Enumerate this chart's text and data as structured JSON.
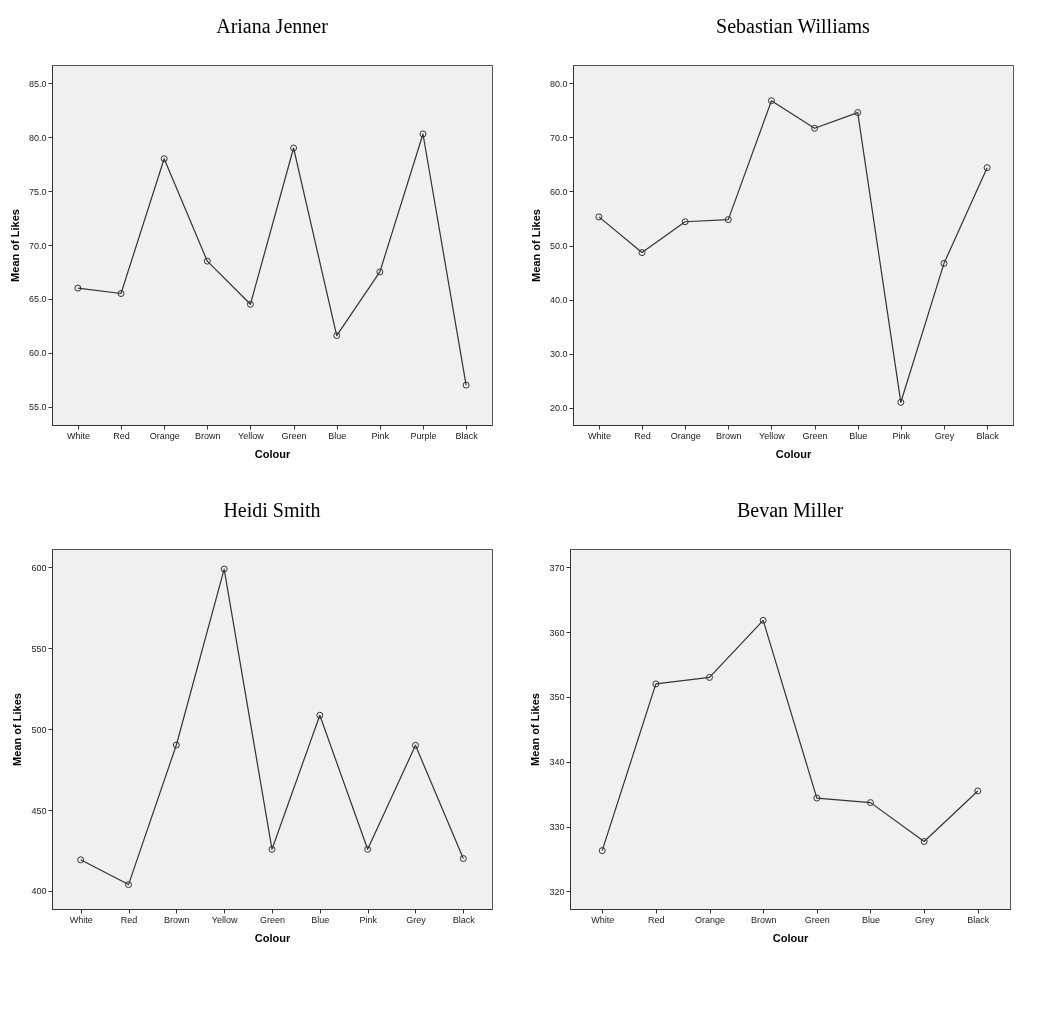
{
  "chart_data": [
    {
      "type": "line",
      "title": "Ariana Jenner",
      "xlabel": "Colour",
      "ylabel": "Mean of Likes",
      "categories": [
        "White",
        "Red",
        "Orange",
        "Brown",
        "Yellow",
        "Green",
        "Blue",
        "Pink",
        "Purple",
        "Black"
      ],
      "series": [
        {
          "color": "#333333",
          "values": [
            66.0,
            65.5,
            78.0,
            68.5,
            64.5,
            79.0,
            61.6,
            67.5,
            80.3,
            57.0
          ]
        }
      ],
      "ylim": [
        53.3,
        86.7
      ],
      "yticks": [
        {
          "value": 55,
          "label": "55.0"
        },
        {
          "value": 60,
          "label": "60.0"
        },
        {
          "value": 65,
          "label": "65.0"
        },
        {
          "value": 70,
          "label": "70.0"
        },
        {
          "value": 75,
          "label": "75.0"
        },
        {
          "value": 80,
          "label": "80.0"
        },
        {
          "value": 85,
          "label": "85.0"
        }
      ],
      "marker": "circle"
    },
    {
      "type": "line",
      "title": "Sebastian Williams",
      "xlabel": "Colour",
      "ylabel": "Mean of Likes",
      "categories": [
        "White",
        "Red",
        "Orange",
        "Brown",
        "Yellow",
        "Green",
        "Blue",
        "Pink",
        "Grey",
        "Black"
      ],
      "series": [
        {
          "color": "#333333",
          "values": [
            55.3,
            48.7,
            54.4,
            54.8,
            76.8,
            71.7,
            74.6,
            21.0,
            46.7,
            64.4
          ]
        }
      ],
      "ylim": [
        16.8,
        83.4
      ],
      "yticks": [
        {
          "value": 20,
          "label": "20.0"
        },
        {
          "value": 30,
          "label": "30.0"
        },
        {
          "value": 40,
          "label": "40.0"
        },
        {
          "value": 50,
          "label": "50.0"
        },
        {
          "value": 60,
          "label": "60.0"
        },
        {
          "value": 70,
          "label": "70.0"
        },
        {
          "value": 80,
          "label": "80.0"
        }
      ],
      "marker": "circle"
    },
    {
      "type": "line",
      "title": "Heidi Smith",
      "xlabel": "Colour",
      "ylabel": "Mean of Likes",
      "categories": [
        "White",
        "Red",
        "Brown",
        "Yellow",
        "Green",
        "Blue",
        "Pink",
        "Grey",
        "Black"
      ],
      "series": [
        {
          "color": "#333333",
          "values": [
            419.2,
            403.9,
            490.2,
            599.0,
            425.7,
            508.6,
            425.7,
            490.0,
            420.0
          ]
        }
      ],
      "ylim": [
        388.8,
        611.4
      ],
      "yticks": [
        400,
        450,
        500,
        550,
        600
      ],
      "marker": "circle"
    },
    {
      "type": "line",
      "title": "Bevan Miller",
      "xlabel": "Colour",
      "ylabel": "Mean of Likes",
      "categories": [
        "White",
        "Red",
        "Orange",
        "Brown",
        "Green",
        "Blue",
        "Grey",
        "Black"
      ],
      "series": [
        {
          "color": "#333333",
          "values": [
            326.3,
            352.0,
            353.0,
            361.8,
            334.4,
            333.7,
            327.7,
            335.5
          ]
        }
      ],
      "ylim": [
        317.3,
        372.8
      ],
      "yticks": [
        320,
        330,
        340,
        350,
        360,
        370
      ],
      "marker": "circle"
    }
  ]
}
